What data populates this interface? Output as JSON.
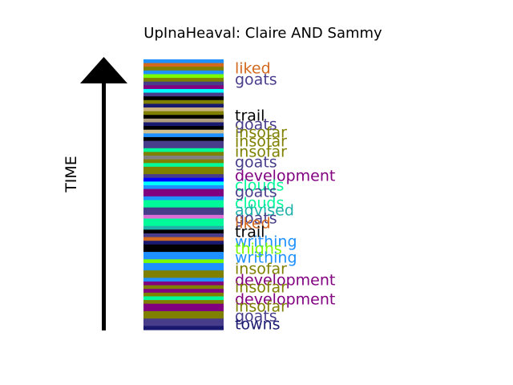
{
  "chart_data": {
    "type": "bar",
    "title": "UpInaHeaval: Claire AND Sammy",
    "ylabel": "TIME",
    "bars": [
      {
        "color": "#1e90ff"
      },
      {
        "color": "#d2691e"
      },
      {
        "color": "#808000"
      },
      {
        "color": "#1e90ff"
      },
      {
        "color": "#7cfc00"
      },
      {
        "color": "#808000"
      },
      {
        "color": "#483d8b"
      },
      {
        "color": "#800080"
      },
      {
        "color": "#00ffff"
      },
      {
        "color": "#483d8b"
      },
      {
        "color": "#000000"
      },
      {
        "color": "#808000"
      },
      {
        "color": "#191970"
      },
      {
        "color": "#c8b17c"
      },
      {
        "color": "#808000"
      },
      {
        "color": "#000000"
      },
      {
        "color": "#b0a080"
      },
      {
        "color": "#191970"
      },
      {
        "color": "#000000"
      },
      {
        "color": "#d0c090"
      },
      {
        "color": "#1e90ff"
      },
      {
        "color": "#000000"
      },
      {
        "color": "#483d8b"
      },
      {
        "color": "#483d8b"
      },
      {
        "color": "#00fa9a"
      },
      {
        "color": "#808000"
      },
      {
        "color": "#808080"
      },
      {
        "color": "#808000"
      },
      {
        "color": "#00fa9a"
      },
      {
        "color": "#808000"
      },
      {
        "color": "#808000"
      },
      {
        "color": "#483d8b"
      },
      {
        "color": "#0000ff"
      },
      {
        "color": "#00ffff"
      },
      {
        "color": "#1e90ff"
      },
      {
        "color": "#800080"
      },
      {
        "color": "#800080"
      },
      {
        "color": "#1e90ff"
      },
      {
        "color": "#00fa9a"
      },
      {
        "color": "#00fa9a"
      },
      {
        "color": "#483d8b"
      },
      {
        "color": "#483d8b"
      },
      {
        "color": "#da70d6"
      },
      {
        "color": "#00fa9a"
      },
      {
        "color": "#00fa9a"
      },
      {
        "color": "#20b2aa"
      },
      {
        "color": "#000000"
      },
      {
        "color": "#483d8b"
      },
      {
        "color": "#d2691e"
      },
      {
        "color": "#191970"
      },
      {
        "color": "#000000"
      },
      {
        "color": "#000000"
      },
      {
        "color": "#1e90ff"
      },
      {
        "color": "#1e90ff"
      },
      {
        "color": "#7cfc00"
      },
      {
        "color": "#1e90ff"
      },
      {
        "color": "#1e90ff"
      },
      {
        "color": "#808000"
      },
      {
        "color": "#808000"
      },
      {
        "color": "#1e90ff"
      },
      {
        "color": "#800080"
      },
      {
        "color": "#808000"
      },
      {
        "color": "#800080"
      },
      {
        "color": "#808000"
      },
      {
        "color": "#00fa9a"
      },
      {
        "color": "#808000"
      },
      {
        "color": "#800080"
      },
      {
        "color": "#800080"
      },
      {
        "color": "#808000"
      },
      {
        "color": "#808000"
      },
      {
        "color": "#483d8b"
      },
      {
        "color": "#483d8b"
      },
      {
        "color": "#191970"
      }
    ],
    "labels": [
      {
        "text": "liked",
        "color": "#d2691e"
      },
      {
        "text": "goats",
        "color": "#483d8b"
      },
      {
        "text": "trail",
        "color": "#000000"
      },
      {
        "text": "goats",
        "color": "#483d8b"
      },
      {
        "text": "insofar",
        "color": "#808000"
      },
      {
        "text": "insofar",
        "color": "#808000"
      },
      {
        "text": "insofar",
        "color": "#808000"
      },
      {
        "text": "goats",
        "color": "#483d8b"
      },
      {
        "text": "development",
        "color": "#800080"
      },
      {
        "text": "clouds",
        "color": "#00fa9a"
      },
      {
        "text": "goats",
        "color": "#483d8b"
      },
      {
        "text": "clouds",
        "color": "#00fa9a"
      },
      {
        "text": "advised",
        "color": "#20b2aa"
      },
      {
        "text": "goats",
        "color": "#483d8b"
      },
      {
        "text": "liked",
        "color": "#d2691e"
      },
      {
        "text": "trail",
        "color": "#000000"
      },
      {
        "text": "writhing",
        "color": "#1e90ff"
      },
      {
        "text": "thighs",
        "color": "#7cfc00"
      },
      {
        "text": "writhing",
        "color": "#1e90ff"
      },
      {
        "text": "insofar",
        "color": "#808000"
      },
      {
        "text": "development",
        "color": "#800080"
      },
      {
        "text": "insofar",
        "color": "#808000"
      },
      {
        "text": "development",
        "color": "#800080"
      },
      {
        "text": "insofar",
        "color": "#808000"
      },
      {
        "text": "goats",
        "color": "#483d8b"
      },
      {
        "text": "towns",
        "color": "#191970"
      }
    ]
  }
}
